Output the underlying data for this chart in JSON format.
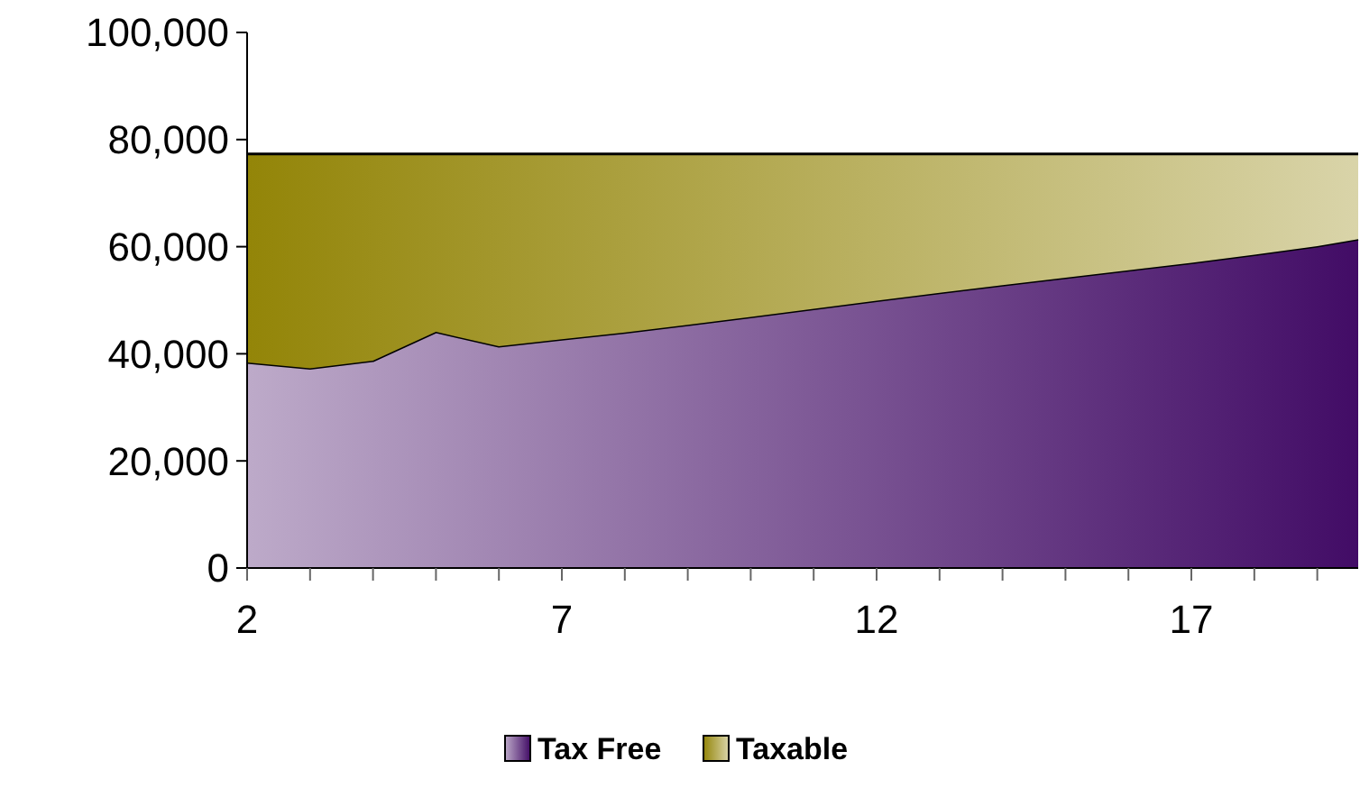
{
  "chart_data": {
    "type": "area",
    "stacked": true,
    "x": [
      2,
      3,
      4,
      5,
      6,
      7,
      8,
      9,
      10,
      11,
      12,
      13,
      14,
      15,
      16,
      17,
      18,
      19,
      19.65
    ],
    "series": [
      {
        "name": "Tax Free",
        "color": "#420c66",
        "values": [
          38400,
          37300,
          38700,
          44100,
          41400,
          42700,
          44000,
          45400,
          46900,
          48400,
          49900,
          51400,
          52800,
          54200,
          55600,
          57000,
          58500,
          60100,
          61400
        ]
      },
      {
        "name": "Taxable",
        "color": "#938508",
        "values": [
          38900,
          40000,
          38600,
          33200,
          35900,
          34600,
          33300,
          31900,
          30400,
          28900,
          27400,
          25900,
          24500,
          23100,
          21700,
          20300,
          18800,
          17200,
          15900
        ]
      }
    ],
    "xlim": [
      2,
      19.65
    ],
    "xticks": [
      2,
      {
        "value": 3,
        "label": null
      },
      {
        "value": 4,
        "label": null
      },
      {
        "value": 5,
        "label": null
      },
      {
        "value": 6,
        "label": null
      },
      7,
      {
        "value": 8,
        "label": null
      },
      {
        "value": 9,
        "label": null
      },
      {
        "value": 10,
        "label": null
      },
      {
        "value": 11,
        "label": null
      },
      12,
      {
        "value": 13,
        "label": null
      },
      {
        "value": 14,
        "label": null
      },
      {
        "value": 15,
        "label": null
      },
      {
        "value": 16,
        "label": null
      },
      17,
      {
        "value": 18,
        "label": null
      },
      {
        "value": 19,
        "label": null
      }
    ],
    "ylim": [
      0,
      100000
    ],
    "yticks": [
      {
        "value": 0,
        "label": "0"
      },
      {
        "value": 20000,
        "label": "20,000"
      },
      {
        "value": 40000,
        "label": "40,000"
      },
      {
        "value": 60000,
        "label": "60,000"
      },
      {
        "value": 80000,
        "label": "80,000"
      },
      {
        "value": 100000,
        "label": "100,000"
      }
    ],
    "grid": false,
    "legend": "bottom"
  }
}
